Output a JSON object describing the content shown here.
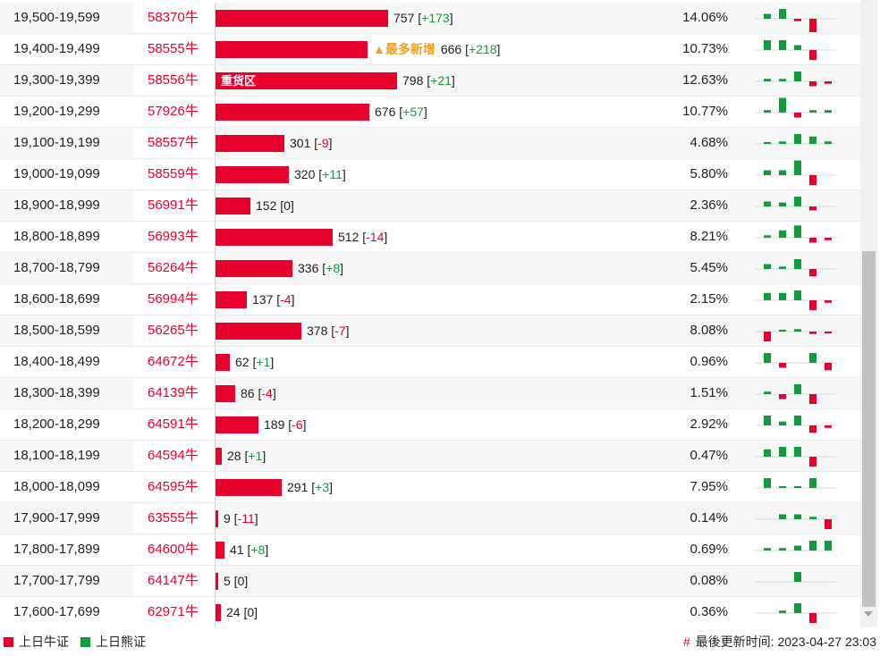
{
  "colors": {
    "bull": "#e8002d",
    "bear": "#109b3c",
    "tag": "#f0a020"
  },
  "rows": [
    {
      "range": "19,500-19,599",
      "code": "58370牛",
      "bar_label": "",
      "tag": "",
      "value": "757",
      "change": "+173",
      "pct": "14.06%",
      "spark": [
        1,
        2,
        -0.5,
        -3,
        0,
        1
      ]
    },
    {
      "range": "19,400-19,499",
      "code": "58555牛",
      "bar_label": "",
      "tag": "▲最多新增",
      "value": "666",
      "change": "+218",
      "pct": "10.73%",
      "spark": [
        2,
        2,
        1,
        -2,
        0,
        3
      ]
    },
    {
      "range": "19,300-19,399",
      "code": "58556牛",
      "bar_label": "重货区",
      "tag": "",
      "value": "798",
      "change": "+21",
      "pct": "12.63%",
      "spark": [
        0.5,
        0.5,
        2,
        -1,
        -0.5,
        0.2
      ]
    },
    {
      "range": "19,200-19,299",
      "code": "57926牛",
      "bar_label": "",
      "tag": "",
      "value": "676",
      "change": "+57",
      "pct": "10.77%",
      "spark": [
        0.5,
        3,
        -1,
        0.5,
        0.5,
        0.5
      ]
    },
    {
      "range": "19,100-19,199",
      "code": "58557牛",
      "bar_label": "",
      "tag": "",
      "value": "301",
      "change": "-9",
      "pct": "4.68%",
      "spark": [
        0.3,
        0.5,
        2,
        1.5,
        0.5,
        -0.3
      ]
    },
    {
      "range": "19,000-19,099",
      "code": "58559牛",
      "bar_label": "",
      "tag": "",
      "value": "320",
      "change": "+11",
      "pct": "5.80%",
      "spark": [
        1,
        1,
        3,
        -2,
        0,
        0.3
      ]
    },
    {
      "range": "18,900-18,999",
      "code": "56991牛",
      "bar_label": "",
      "tag": "",
      "value": "152",
      "change": "0",
      "pct": "2.36%",
      "spark": [
        1,
        0.8,
        2,
        -0.8,
        0,
        0
      ]
    },
    {
      "range": "18,800-18,899",
      "code": "56993牛",
      "bar_label": "",
      "tag": "",
      "value": "512",
      "change": "-14",
      "pct": "8.21%",
      "spark": [
        0.5,
        1.5,
        2.5,
        -1,
        -0.5,
        -0.3
      ]
    },
    {
      "range": "18,700-18,799",
      "code": "56264牛",
      "bar_label": "",
      "tag": "",
      "value": "336",
      "change": "+8",
      "pct": "5.45%",
      "spark": [
        1,
        0.5,
        2,
        -1.5,
        0,
        0.3
      ]
    },
    {
      "range": "18,600-18,699",
      "code": "56994牛",
      "bar_label": "",
      "tag": "",
      "value": "137",
      "change": "-4",
      "pct": "2.15%",
      "spark": [
        1.5,
        1.5,
        2,
        -2,
        -0.5,
        0
      ]
    },
    {
      "range": "18,500-18,599",
      "code": "56265牛",
      "bar_label": "",
      "tag": "",
      "value": "378",
      "change": "-7",
      "pct": "8.08%",
      "spark": [
        -2,
        0.3,
        0.5,
        -0.5,
        -0.3,
        -0.3
      ]
    },
    {
      "range": "18,400-18,499",
      "code": "64672牛",
      "bar_label": "",
      "tag": "",
      "value": "62",
      "change": "+1",
      "pct": "0.96%",
      "spark": [
        2,
        -1,
        0,
        2,
        -1.5,
        0
      ]
    },
    {
      "range": "18,300-18,399",
      "code": "64139牛",
      "bar_label": "",
      "tag": "",
      "value": "86",
      "change": "-4",
      "pct": "1.51%",
      "spark": [
        0.5,
        -1,
        2,
        -2,
        0,
        -0.3
      ]
    },
    {
      "range": "18,200-18,299",
      "code": "64591牛",
      "bar_label": "",
      "tag": "",
      "value": "189",
      "change": "-6",
      "pct": "2.92%",
      "spark": [
        2,
        0.8,
        2,
        -1.5,
        -0.5,
        -0.5
      ]
    },
    {
      "range": "18,100-18,199",
      "code": "64594牛",
      "bar_label": "",
      "tag": "",
      "value": "28",
      "change": "+1",
      "pct": "0.47%",
      "spark": [
        1.5,
        2,
        2,
        -2,
        0,
        0
      ]
    },
    {
      "range": "18,000-18,099",
      "code": "64595牛",
      "bar_label": "",
      "tag": "",
      "value": "291",
      "change": "+3",
      "pct": "7.95%",
      "spark": [
        2,
        0.3,
        0.3,
        2,
        0,
        0.3
      ]
    },
    {
      "range": "17,900-17,999",
      "code": "63555牛",
      "bar_label": "",
      "tag": "",
      "value": "9",
      "change": "-11",
      "pct": "0.14%",
      "spark": [
        0,
        1,
        1,
        0.5,
        -2,
        0
      ]
    },
    {
      "range": "17,800-17,899",
      "code": "64600牛",
      "bar_label": "",
      "tag": "",
      "value": "41",
      "change": "+8",
      "pct": "0.69%",
      "spark": [
        0.5,
        0.5,
        1,
        2,
        2,
        0
      ]
    },
    {
      "range": "17,700-17,799",
      "code": "64147牛",
      "bar_label": "",
      "tag": "",
      "value": "5",
      "change": "0",
      "pct": "0.08%",
      "spark": [
        0,
        0,
        2,
        0,
        0,
        0
      ]
    },
    {
      "range": "17,600-17,699",
      "code": "62971牛",
      "bar_label": "",
      "tag": "",
      "value": "24",
      "change": "0",
      "pct": "0.36%",
      "spark": [
        0,
        0.5,
        2,
        -2,
        0,
        0
      ]
    }
  ],
  "footer": {
    "legend_bull": "上日牛证",
    "legend_bear": "上日熊证",
    "updated_mark": "#",
    "updated_label": "最後更新时间:",
    "updated_time": "2023-04-27 23:03"
  }
}
